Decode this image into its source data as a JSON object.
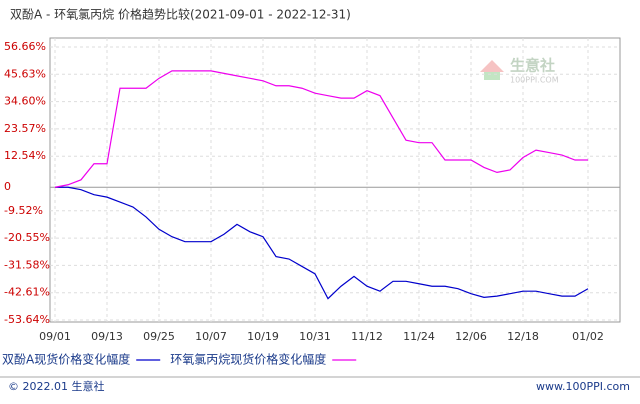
{
  "chart_data": {
    "type": "line",
    "title": "双酚A - 环氧氯丙烷 价格趋势比较(2021-09-01 - 2022-12-31)",
    "categories": [
      "09/01",
      null,
      null,
      null,
      "09/13",
      null,
      null,
      null,
      "09/25",
      null,
      null,
      null,
      "10/07",
      null,
      null,
      null,
      "10/19",
      null,
      null,
      null,
      "10/31",
      null,
      null,
      null,
      "11/12",
      null,
      null,
      null,
      "11/24",
      null,
      null,
      null,
      "12/06",
      null,
      null,
      null,
      "12/18",
      null,
      null,
      null,
      null,
      "01/02"
    ],
    "series": [
      {
        "name": "双酚A现货价格变化幅度",
        "color": "#0000cc",
        "values": [
          0,
          0,
          -1,
          -3,
          -4,
          -6,
          -8,
          -12,
          -17,
          -20,
          -22,
          -22,
          -22,
          -19,
          -15,
          -18,
          -20,
          -28,
          -29,
          -32,
          -35,
          -45,
          -40,
          -36,
          -40,
          -42,
          -38,
          -38,
          -39,
          -40,
          -40,
          -41,
          -43,
          -44.5,
          -44,
          -43,
          -42,
          -42,
          -43,
          -44,
          -44,
          -41
        ]
      },
      {
        "name": "环氧氯丙烷现货价格变化幅度",
        "color": "#ee00ee",
        "values": [
          0,
          1,
          3,
          9.5,
          9.5,
          40,
          40,
          40,
          44,
          47,
          47,
          47,
          47,
          46,
          45,
          44,
          43,
          41,
          41,
          40,
          38,
          37,
          36,
          36,
          39,
          37,
          28,
          19,
          18,
          18,
          11,
          11,
          11,
          8,
          6,
          7,
          12,
          15,
          14,
          13,
          11,
          11
        ]
      }
    ],
    "ylim": [
      -53.64,
      56.66
    ],
    "yticks": [
      {
        "value": 56.66,
        "label": "56.66%"
      },
      {
        "value": 45.63,
        "label": "45.63%"
      },
      {
        "value": 34.6,
        "label": "34.60%"
      },
      {
        "value": 23.57,
        "label": "23.57%"
      },
      {
        "value": 12.54,
        "label": "12.54%"
      },
      0,
      {
        "value": -9.52,
        "label": "-9.52%"
      },
      {
        "value": -20.55,
        "label": "-20.55%"
      },
      {
        "value": -31.58,
        "label": "-31.58%"
      },
      {
        "value": -42.61,
        "label": "-42.61%"
      },
      {
        "value": -53.64,
        "label": "-53.64%"
      }
    ],
    "grid": true,
    "watermark": {
      "name": "生意社",
      "site": "100PPI.COM"
    },
    "footer": {
      "left": "© 2022.01 生意社",
      "right": "www.100PPI.com"
    }
  }
}
